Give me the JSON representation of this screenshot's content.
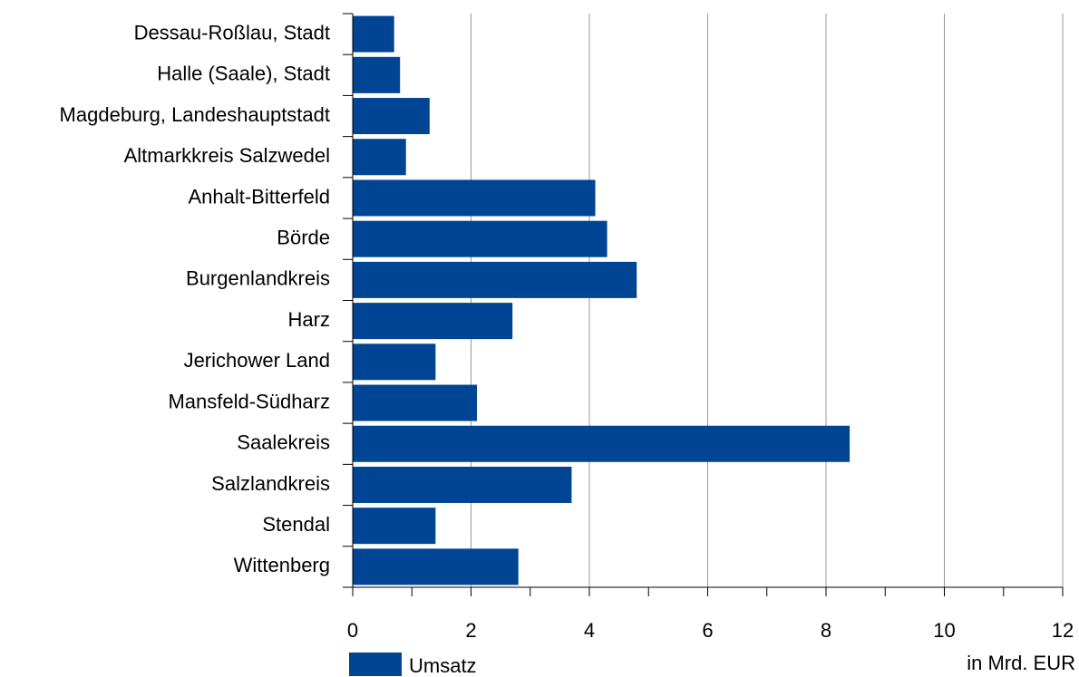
{
  "chart_data": {
    "type": "bar",
    "orientation": "horizontal",
    "categories": [
      "Dessau-Roßlau, Stadt",
      "Halle (Saale), Stadt",
      "Magdeburg, Landeshauptstadt",
      "Altmarkkreis Salzwedel",
      "Anhalt-Bitterfeld",
      "Börde",
      "Burgenlandkreis",
      "Harz",
      "Jerichower Land",
      "Mansfeld-Südharz",
      "Saalekreis",
      "Salzlandkreis",
      "Stendal",
      "Wittenberg"
    ],
    "series": [
      {
        "name": "Umsatz",
        "color": "#004494",
        "values": [
          0.7,
          0.8,
          1.3,
          0.9,
          4.1,
          4.3,
          4.8,
          2.7,
          1.4,
          2.1,
          8.4,
          3.7,
          1.4,
          2.8
        ]
      }
    ],
    "xlim": [
      0,
      12
    ],
    "xticks": [
      0,
      2,
      4,
      6,
      8,
      10,
      12
    ],
    "minor_xticks": [
      1,
      3,
      5,
      7,
      9,
      11
    ],
    "x_label": "in Mrd. EUR",
    "grid": true,
    "legend": "bottom-left"
  }
}
